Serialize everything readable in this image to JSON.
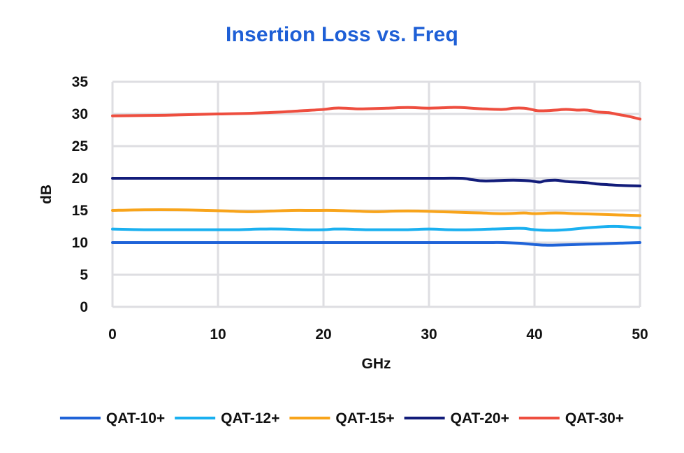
{
  "chart_data": {
    "type": "line",
    "title": "Insertion Loss vs. Freq",
    "xlabel": "GHz",
    "ylabel": "dB",
    "xlim": [
      0,
      50
    ],
    "ylim": [
      0,
      35
    ],
    "xticks": [
      0,
      10,
      20,
      30,
      40,
      50
    ],
    "yticks": [
      0,
      5,
      10,
      15,
      20,
      25,
      30,
      35
    ],
    "grid": true,
    "legend_position": "bottom",
    "series": [
      {
        "name": "QAT-10+",
        "color": "#1f63d8",
        "points": [
          [
            0,
            10.0
          ],
          [
            5,
            10.0
          ],
          [
            10,
            10.0
          ],
          [
            15,
            10.0
          ],
          [
            20,
            10.0
          ],
          [
            25,
            10.0
          ],
          [
            30,
            10.0
          ],
          [
            35,
            10.0
          ],
          [
            37,
            10.0
          ],
          [
            38.5,
            9.9
          ],
          [
            40,
            9.7
          ],
          [
            41,
            9.6
          ],
          [
            42,
            9.6
          ],
          [
            44,
            9.7
          ],
          [
            46,
            9.8
          ],
          [
            48,
            9.9
          ],
          [
            50,
            10.0
          ]
        ]
      },
      {
        "name": "QAT-12+",
        "color": "#1ab0f0",
        "points": [
          [
            0,
            12.1
          ],
          [
            3,
            12.0
          ],
          [
            6,
            12.0
          ],
          [
            10,
            12.0
          ],
          [
            12,
            12.0
          ],
          [
            14,
            12.1
          ],
          [
            16,
            12.1
          ],
          [
            18,
            12.0
          ],
          [
            20,
            12.0
          ],
          [
            21,
            12.1
          ],
          [
            22,
            12.1
          ],
          [
            24,
            12.0
          ],
          [
            26,
            12.0
          ],
          [
            28,
            12.0
          ],
          [
            30,
            12.1
          ],
          [
            32,
            12.0
          ],
          [
            34,
            12.0
          ],
          [
            36,
            12.1
          ],
          [
            38,
            12.2
          ],
          [
            39,
            12.2
          ],
          [
            40,
            12.0
          ],
          [
            41.5,
            11.9
          ],
          [
            43,
            12.0
          ],
          [
            45,
            12.3
          ],
          [
            47,
            12.5
          ],
          [
            48,
            12.5
          ],
          [
            50,
            12.3
          ]
        ]
      },
      {
        "name": "QAT-15+",
        "color": "#f8a41b",
        "points": [
          [
            0,
            15.0
          ],
          [
            3,
            15.1
          ],
          [
            6,
            15.1
          ],
          [
            9,
            15.0
          ],
          [
            11,
            14.9
          ],
          [
            13,
            14.8
          ],
          [
            15,
            14.9
          ],
          [
            17,
            15.0
          ],
          [
            19,
            15.0
          ],
          [
            21,
            15.0
          ],
          [
            23,
            14.9
          ],
          [
            25,
            14.8
          ],
          [
            27,
            14.9
          ],
          [
            29,
            14.9
          ],
          [
            31,
            14.8
          ],
          [
            33,
            14.7
          ],
          [
            35,
            14.6
          ],
          [
            37,
            14.5
          ],
          [
            39,
            14.6
          ],
          [
            40,
            14.5
          ],
          [
            42,
            14.6
          ],
          [
            44,
            14.5
          ],
          [
            46,
            14.4
          ],
          [
            48,
            14.3
          ],
          [
            50,
            14.2
          ]
        ]
      },
      {
        "name": "QAT-20+",
        "color": "#121c7a",
        "points": [
          [
            0,
            20.0
          ],
          [
            10,
            20.0
          ],
          [
            20,
            20.0
          ],
          [
            30,
            20.0
          ],
          [
            33,
            20.0
          ],
          [
            34,
            19.8
          ],
          [
            35,
            19.6
          ],
          [
            36,
            19.6
          ],
          [
            38,
            19.7
          ],
          [
            39.5,
            19.6
          ],
          [
            40.5,
            19.4
          ],
          [
            41,
            19.6
          ],
          [
            42,
            19.7
          ],
          [
            43,
            19.5
          ],
          [
            44,
            19.4
          ],
          [
            45,
            19.3
          ],
          [
            46,
            19.1
          ],
          [
            47,
            19.0
          ],
          [
            48,
            18.9
          ],
          [
            50,
            18.8
          ]
        ]
      },
      {
        "name": "QAT-30+",
        "color": "#ee4e3f",
        "points": [
          [
            0,
            29.7
          ],
          [
            5,
            29.8
          ],
          [
            10,
            30.0
          ],
          [
            13,
            30.1
          ],
          [
            16,
            30.3
          ],
          [
            18,
            30.5
          ],
          [
            20,
            30.7
          ],
          [
            21,
            30.9
          ],
          [
            22,
            30.9
          ],
          [
            23,
            30.8
          ],
          [
            24,
            30.8
          ],
          [
            26,
            30.9
          ],
          [
            28,
            31.0
          ],
          [
            30,
            30.9
          ],
          [
            32,
            31.0
          ],
          [
            33,
            31.0
          ],
          [
            35,
            30.8
          ],
          [
            37,
            30.7
          ],
          [
            38,
            30.9
          ],
          [
            39,
            30.9
          ],
          [
            39.7,
            30.7
          ],
          [
            40.3,
            30.5
          ],
          [
            41,
            30.5
          ],
          [
            42,
            30.6
          ],
          [
            43,
            30.7
          ],
          [
            44,
            30.6
          ],
          [
            45,
            30.6
          ],
          [
            46,
            30.3
          ],
          [
            47,
            30.2
          ],
          [
            48,
            29.9
          ],
          [
            49,
            29.6
          ],
          [
            50,
            29.2
          ]
        ]
      }
    ]
  }
}
